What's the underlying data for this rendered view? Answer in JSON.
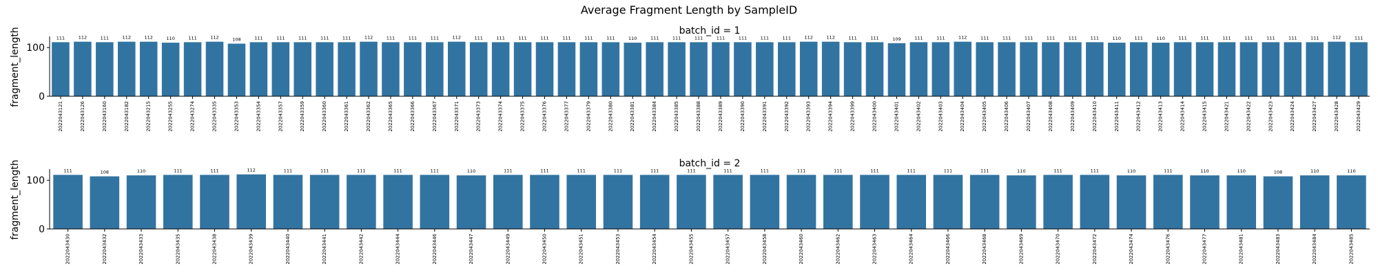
{
  "figure": {
    "title": "Average Fragment Length by SampleID"
  },
  "colors": {
    "bar": "#3274a1",
    "axis": "#000000"
  },
  "chart_data": [
    {
      "type": "bar",
      "title": "batch_id = 1",
      "xlabel": "",
      "ylabel": "fragment_length",
      "ylim": [
        0,
        120
      ],
      "yticks": [
        0,
        100
      ],
      "categories": [
        "2022043121",
        "2022043126",
        "2022043160",
        "2022043182",
        "2022043215",
        "2022043255",
        "2022043274",
        "2022043335",
        "2022043353",
        "2022043354",
        "2022043357",
        "2022043359",
        "2022043360",
        "2022043361",
        "2022043362",
        "2022043365",
        "2022043366",
        "2022043367",
        "2022043371",
        "2022043373",
        "2022043374",
        "2022043375",
        "2022043376",
        "2022043377",
        "2022043379",
        "2022043380",
        "2022043381",
        "2022043384",
        "2022043385",
        "2022043388",
        "2022043389",
        "2022043390",
        "2022043391",
        "2022043392",
        "2022043393",
        "2022043394",
        "2022043399",
        "2022043400",
        "2022043401",
        "2022043402",
        "2022043403",
        "2022043404",
        "2022043405",
        "2022043406",
        "2022043407",
        "2022043408",
        "2022043409",
        "2022043410",
        "2022043411",
        "2022043412",
        "2022043413",
        "2022043414",
        "2022043415",
        "2022043421",
        "2022043422",
        "2022043423",
        "2022043424",
        "2022043427",
        "2022043428",
        "2022043429"
      ],
      "values": [
        111,
        112,
        111,
        112,
        112,
        110,
        111,
        112,
        108,
        111,
        111,
        111,
        111,
        111,
        112,
        111,
        111,
        111,
        112,
        111,
        111,
        111,
        111,
        111,
        111,
        111,
        110,
        111,
        111,
        111,
        111,
        111,
        111,
        111,
        112,
        112,
        111,
        111,
        109,
        111,
        111,
        112,
        111,
        111,
        111,
        111,
        111,
        111,
        110,
        111,
        110,
        111,
        111,
        111,
        111,
        111,
        111,
        111,
        112,
        111
      ]
    },
    {
      "type": "bar",
      "title": "batch_id = 2",
      "xlabel": "",
      "ylabel": "fragment_length",
      "ylim": [
        0,
        120
      ],
      "yticks": [
        0,
        100
      ],
      "categories": [
        "2022043430",
        "2022043432",
        "2022043433",
        "2022043435",
        "2022043438",
        "2022043439",
        "2022043440",
        "2022043441",
        "2022043442",
        "2022043444",
        "2022043446",
        "2022043447",
        "2022043449",
        "2022043450",
        "2022043451",
        "2022043453",
        "2022043454",
        "2022043455",
        "2022043457",
        "2022043458",
        "2022043460",
        "2022043462",
        "2022043463",
        "2022043464",
        "2022043466",
        "2022043468",
        "2022043469",
        "2022043470",
        "2022043472",
        "2022043474",
        "2022043476",
        "2022043477",
        "2022043481",
        "2022043483",
        "2022043484",
        "2022043485"
      ],
      "values": [
        111,
        108,
        110,
        111,
        111,
        112,
        111,
        111,
        111,
        111,
        111,
        110,
        111,
        111,
        111,
        111,
        111,
        111,
        111,
        111,
        111,
        111,
        111,
        111,
        111,
        111,
        110,
        111,
        111,
        110,
        111,
        110,
        110,
        108,
        110,
        110
      ]
    }
  ]
}
